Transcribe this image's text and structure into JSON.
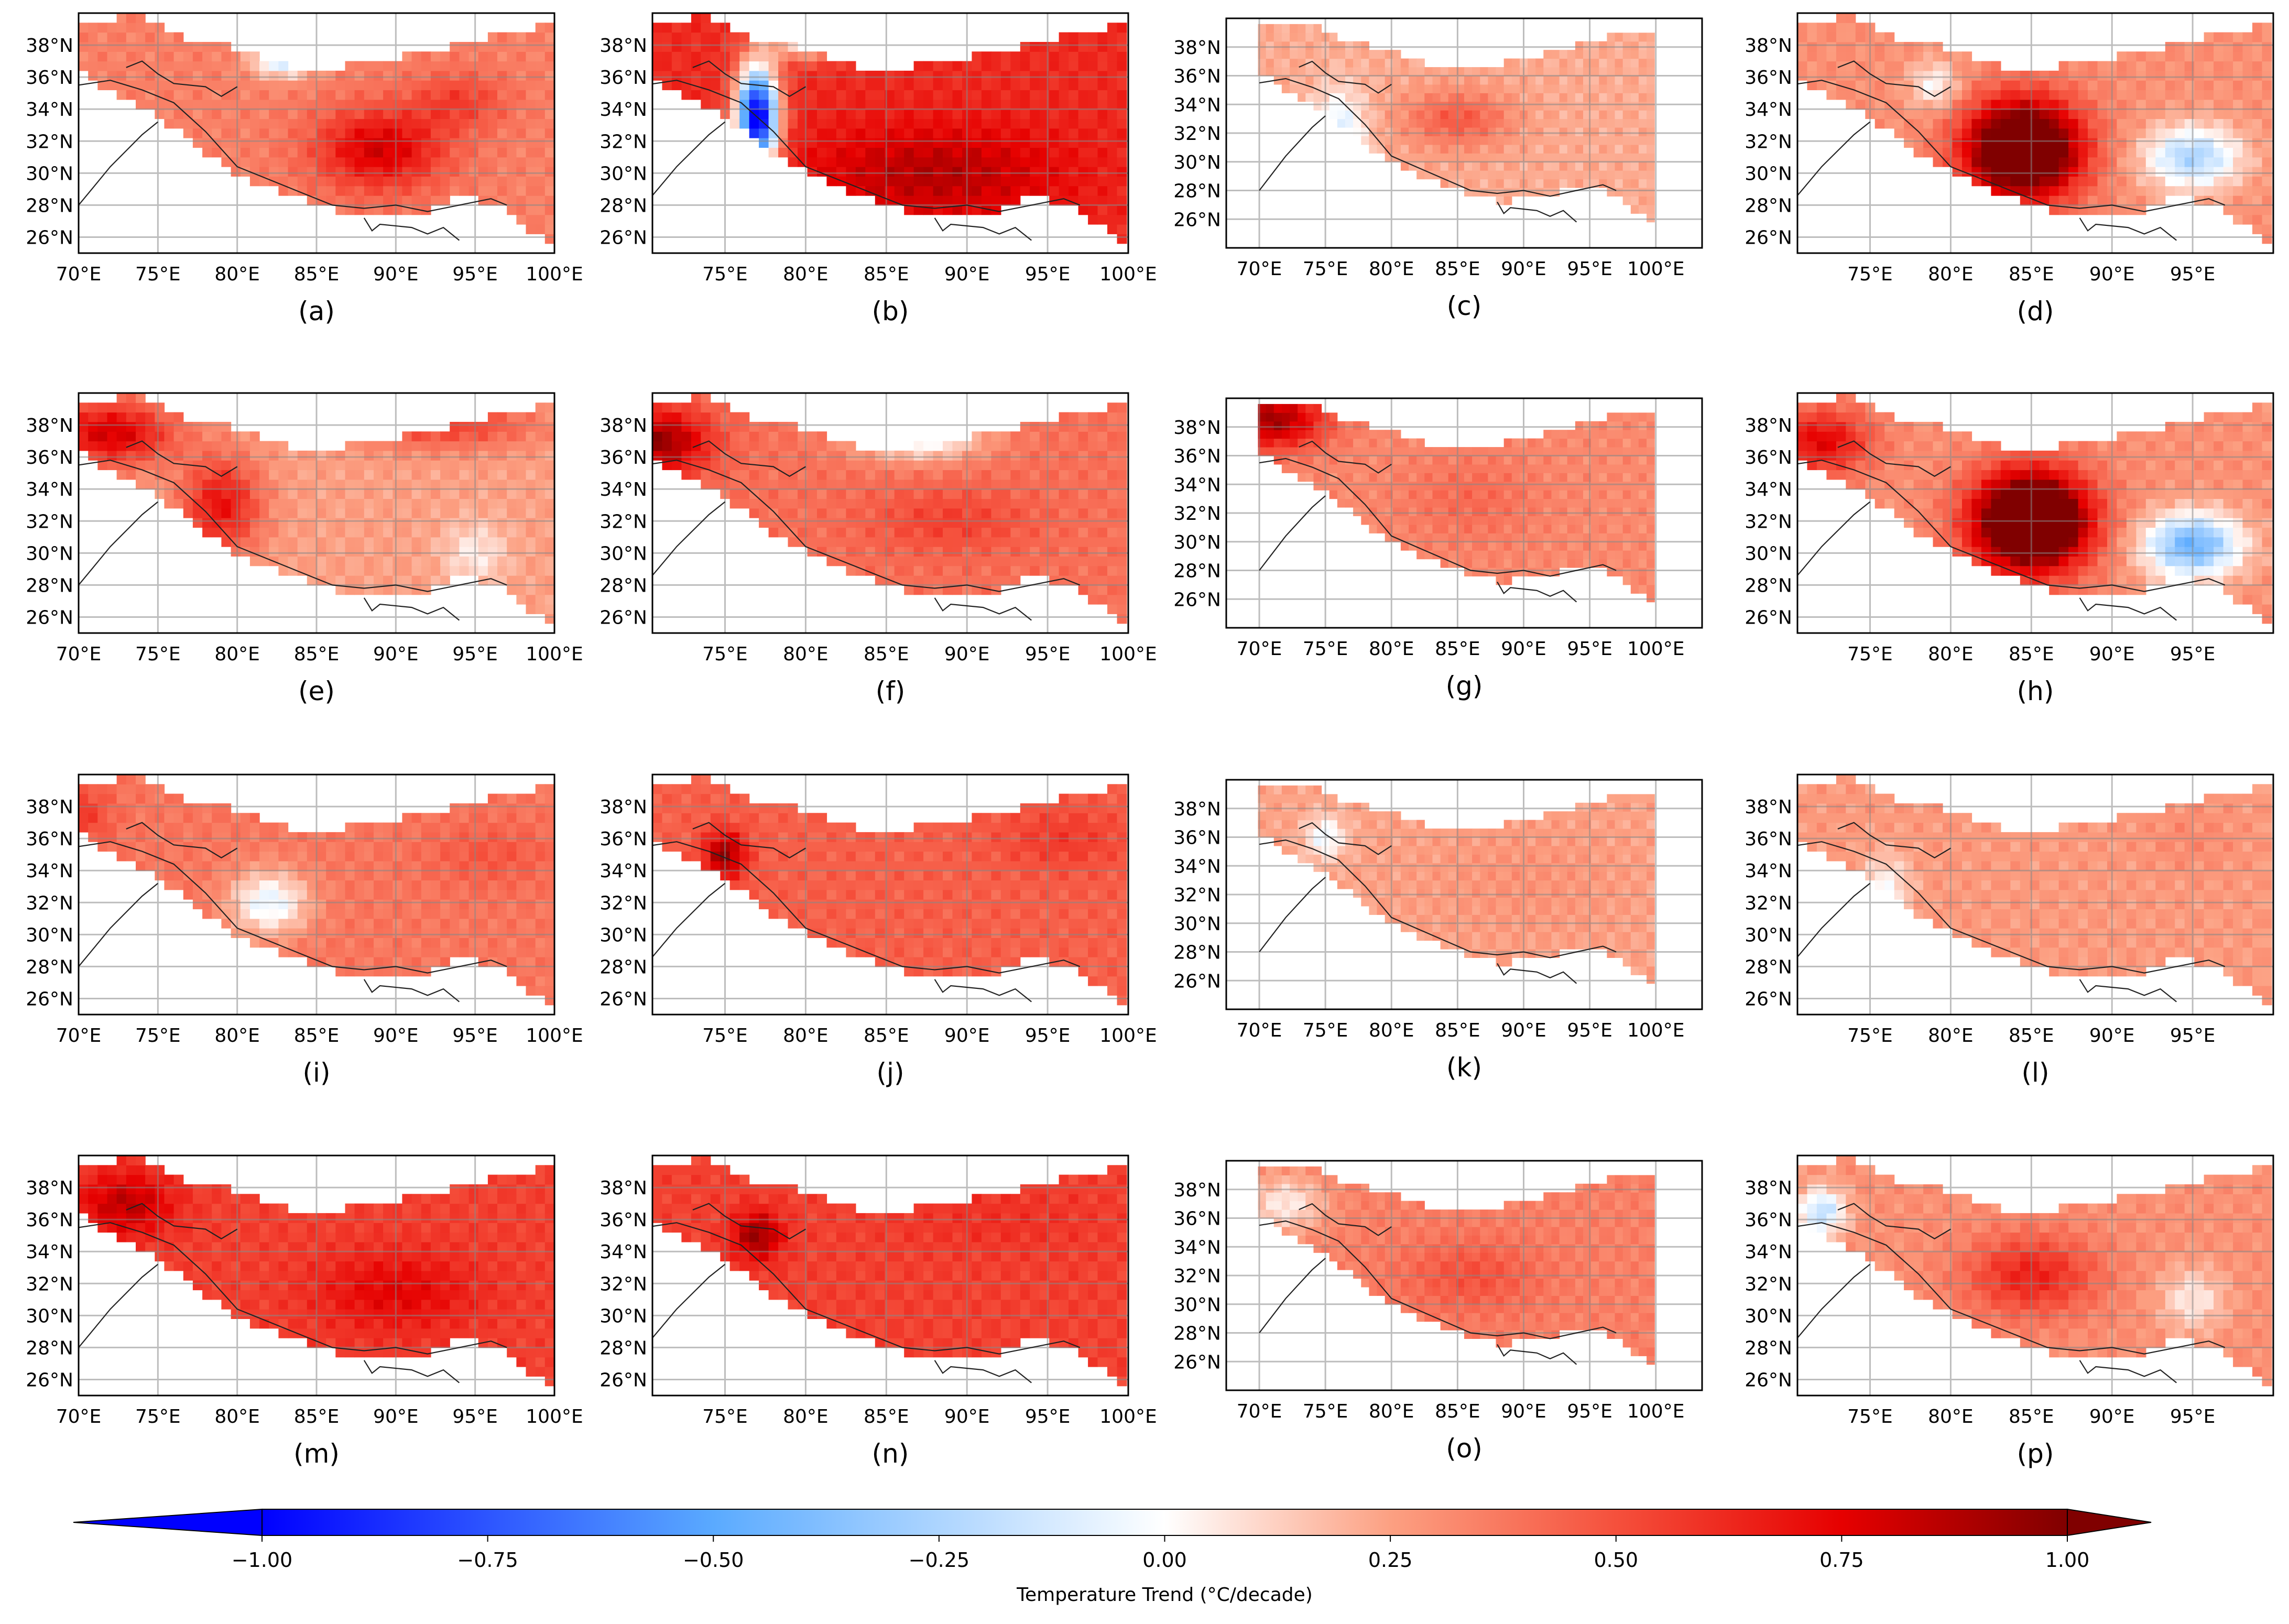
{
  "figure": {
    "colorbar": {
      "label": "Temperature Trend (°C/decade)",
      "ticks": [
        "−1.00",
        "−0.75",
        "−0.50",
        "−0.25",
        "0.00",
        "0.25",
        "0.50",
        "0.75",
        "1.00"
      ],
      "tick_values": [
        -1.0,
        -0.75,
        -0.5,
        -0.25,
        0.0,
        0.25,
        0.5,
        0.75,
        1.0
      ],
      "range": [
        -1.0,
        1.0
      ],
      "extend": "both",
      "colors": {
        "low": "#0000ff",
        "mid": "#ffffff",
        "high": "#7f0000"
      }
    },
    "lat_labels": [
      "38°N",
      "36°N",
      "34°N",
      "32°N",
      "30°N",
      "28°N",
      "26°N"
    ],
    "panels": [
      {
        "label": "(a)",
        "lon_labels": [
          "70°E",
          "75°E",
          "80°E",
          "85°E",
          "90°E",
          "95°E",
          "100°E"
        ],
        "pattern": "strong warming centered over central plateau (~88–92°E, 30–33°N), weak cooling spots in north"
      },
      {
        "label": "(b)",
        "lon_labels": [
          "75°E",
          "80°E",
          "85°E",
          "90°E",
          "95°E",
          "100°E"
        ],
        "pattern": "intense warming across plateau, strong cooling in western Karakoram/Kashmir"
      },
      {
        "label": "(c)",
        "lon_labels": [
          "70°E",
          "75°E",
          "80°E",
          "85°E",
          "90°E",
          "95°E",
          "100°E"
        ],
        "pattern": "weak to moderate warming, small cooling patches in west and south"
      },
      {
        "label": "(d)",
        "lon_labels": [
          "75°E",
          "80°E",
          "85°E",
          "90°E",
          "95°E"
        ],
        "pattern": "very strong warming core (~82–87°E, 29–34°N), cooling in east (~94°E, 31°N)"
      },
      {
        "label": "(e)",
        "lon_labels": [
          "70°E",
          "75°E",
          "80°E",
          "85°E",
          "90°E",
          "95°E",
          "100°E"
        ],
        "pattern": "strong warming along western margins and north, weak warming interior"
      },
      {
        "label": "(f)",
        "lon_labels": [
          "75°E",
          "80°E",
          "85°E",
          "90°E",
          "95°E",
          "100°E"
        ],
        "pattern": "strong warming in west, mixed warming/cooling patches in north-center"
      },
      {
        "label": "(g)",
        "lon_labels": [
          "70°E",
          "75°E",
          "80°E",
          "85°E",
          "90°E",
          "95°E",
          "100°E"
        ],
        "pattern": "strong warming northwest corner, moderate warming elsewhere"
      },
      {
        "label": "(h)",
        "lon_labels": [
          "75°E",
          "80°E",
          "85°E",
          "90°E",
          "95°E"
        ],
        "pattern": "very strong warming core (~82–88°E, 29–35°N), cooling in east"
      },
      {
        "label": "(i)",
        "lon_labels": [
          "70°E",
          "75°E",
          "80°E",
          "85°E",
          "90°E",
          "95°E",
          "100°E"
        ],
        "pattern": "moderate warming, slight cooling near 82°E 32°N"
      },
      {
        "label": "(j)",
        "lon_labels": [
          "75°E",
          "80°E",
          "85°E",
          "90°E",
          "95°E",
          "100°E"
        ],
        "pattern": "moderate uniform warming, strong localized patches in Karakoram"
      },
      {
        "label": "(k)",
        "lon_labels": [
          "70°E",
          "75°E",
          "80°E",
          "85°E",
          "90°E",
          "95°E",
          "100°E"
        ],
        "pattern": "weak warming, small cooling spots in northwest"
      },
      {
        "label": "(l)",
        "lon_labels": [
          "75°E",
          "80°E",
          "85°E",
          "90°E",
          "95°E"
        ],
        "pattern": "weak to moderate warming, slight cooling along western Himalaya"
      },
      {
        "label": "(m)",
        "lon_labels": [
          "70°E",
          "75°E",
          "80°E",
          "85°E",
          "90°E",
          "95°E",
          "100°E"
        ],
        "pattern": "strong warming across most of the plateau"
      },
      {
        "label": "(n)",
        "lon_labels": [
          "75°E",
          "80°E",
          "85°E",
          "90°E",
          "95°E",
          "100°E"
        ],
        "pattern": "strong warming, intense in Karakoram"
      },
      {
        "label": "(o)",
        "lon_labels": [
          "70°E",
          "75°E",
          "80°E",
          "85°E",
          "90°E",
          "95°E",
          "100°E"
        ],
        "pattern": "moderate warming, weak in west"
      },
      {
        "label": "(p)",
        "lon_labels": [
          "75°E",
          "80°E",
          "85°E",
          "90°E",
          "95°E"
        ],
        "pattern": "moderate warming core (~85°E, 32°N), cooling in west Himalaya and east"
      }
    ]
  }
}
